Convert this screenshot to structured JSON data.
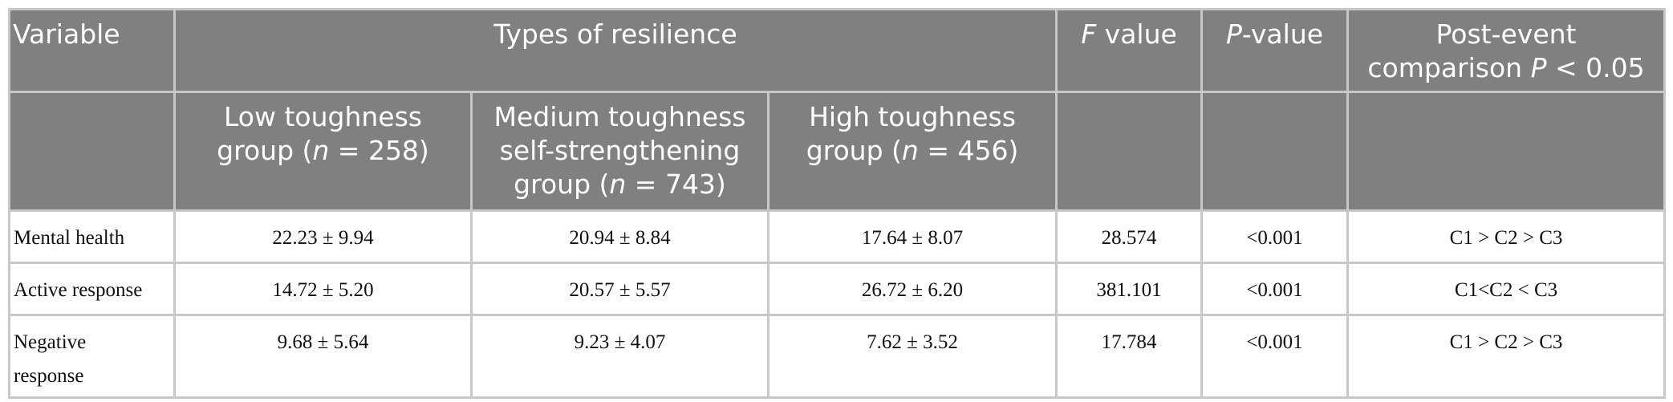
{
  "header": {
    "variable": "Variable",
    "types_of_resilience": "Types of resilience",
    "f_value_italic": "F",
    "f_value_rest": " value",
    "p_value_italic": "P",
    "p_value_rest": "-value",
    "post_event_line1": "Post-event",
    "post_event_line2_prefix": "comparison ",
    "post_event_line2_italic": "P",
    "post_event_line2_suffix": " < 0.05",
    "groups": [
      {
        "line1": "Low toughness",
        "line2_prefix": "group (",
        "n_italic": "n",
        "line2_suffix": " = 258)"
      },
      {
        "line1": "Medium toughness",
        "line2": "self-strengthening",
        "line3_prefix": "group (",
        "n_italic": "n",
        "line3_suffix": " = 743)"
      },
      {
        "line1": "High toughness",
        "line2_prefix": "group (",
        "n_italic": "n",
        "line2_suffix": " = 456)"
      }
    ]
  },
  "rows": [
    {
      "variable": "Mental health",
      "c1": "22.23 ± 9.94",
      "c2": "20.94 ± 8.84",
      "c3": "17.64 ± 8.07",
      "f": "28.574",
      "p": "<0.001",
      "post": "C1 > C2 > C3"
    },
    {
      "variable": "Active response",
      "c1": "14.72 ± 5.20",
      "c2": "20.57 ± 5.57",
      "c3": "26.72 ± 6.20",
      "f": "381.101",
      "p": "<0.001",
      "post": "C1<C2 < C3"
    },
    {
      "variable_line1": "Negative",
      "variable_line2": "response",
      "c1": "9.68 ± 5.64",
      "c2": "9.23 ± 4.07",
      "c3": "7.62 ± 3.52",
      "f": "17.784",
      "p": "<0.001",
      "post": "C1 > C2 > C3"
    }
  ]
}
